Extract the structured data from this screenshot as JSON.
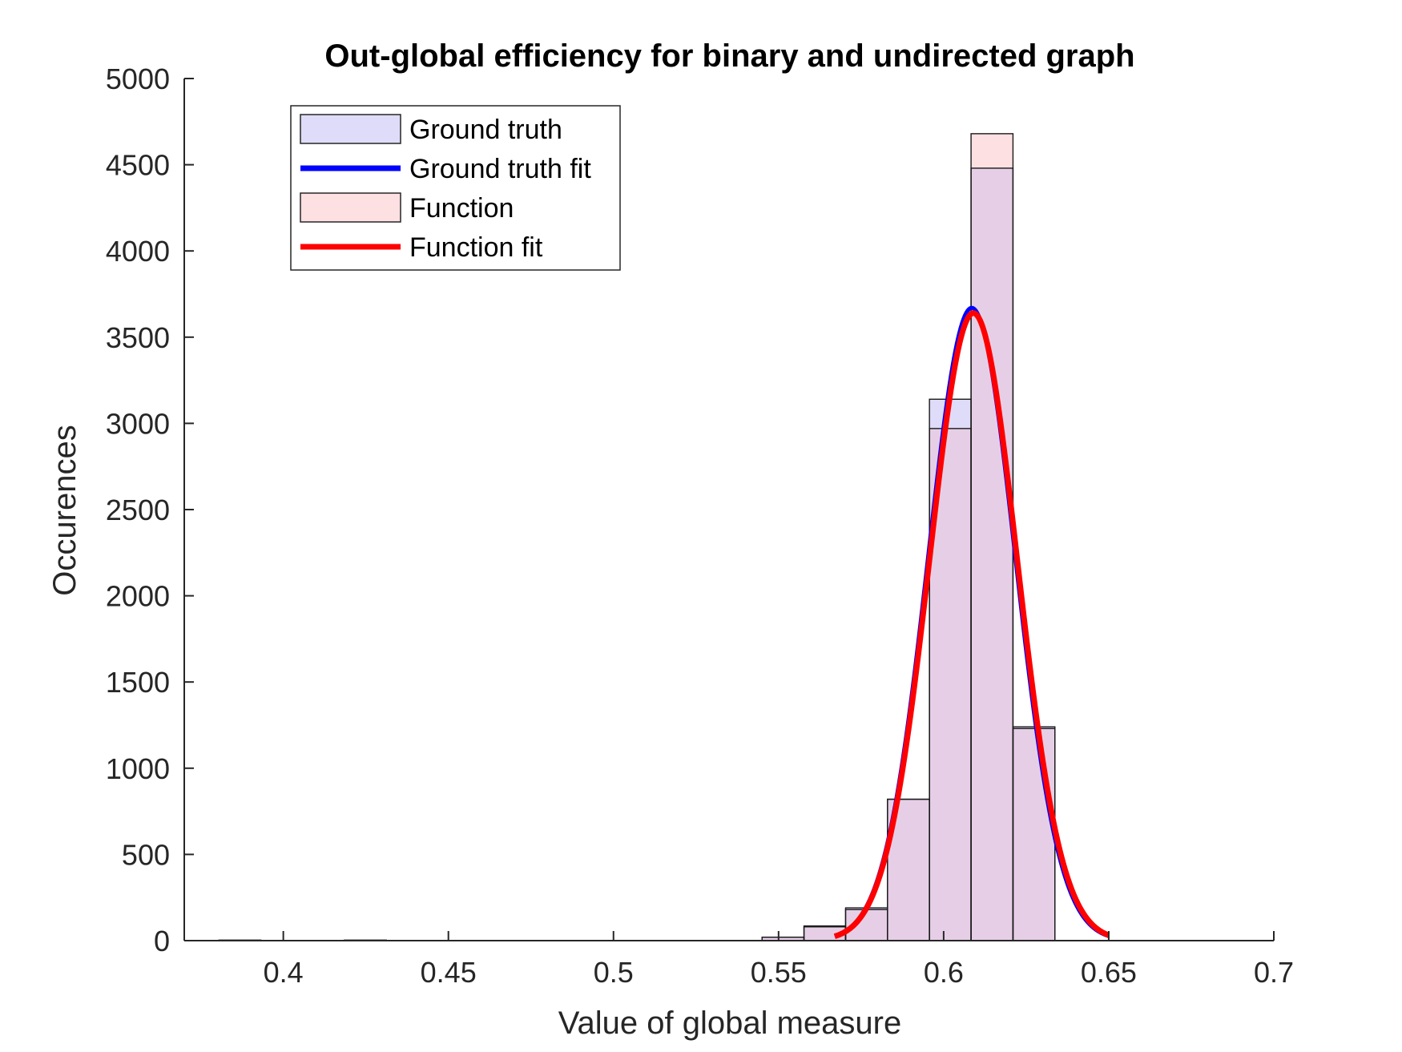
{
  "chart_data": {
    "type": "bar",
    "title": "Out-global efficiency for binary and undirected graph",
    "xlabel": "Value of global measure",
    "ylabel": "Occurences",
    "xlim": [
      0.37,
      0.7
    ],
    "ylim": [
      0,
      5000
    ],
    "xticks": [
      "0.4",
      "0.45",
      "0.5",
      "0.55",
      "0.6",
      "0.65",
      "0.7"
    ],
    "yticks": [
      "0",
      "500",
      "1000",
      "1500",
      "2000",
      "2500",
      "3000",
      "3500",
      "4000",
      "4500",
      "5000"
    ],
    "grid": false,
    "legend_position": "top-left",
    "legend": [
      "Ground truth",
      "Ground truth fit",
      "Function",
      "Function fit"
    ],
    "series": [
      {
        "name": "Ground truth",
        "kind": "histogram",
        "color": "#dedcf8",
        "bins": [
          {
            "x0": 0.3805,
            "x1": 0.3932,
            "count": 3
          },
          {
            "x0": 0.4185,
            "x1": 0.4312,
            "count": 3
          },
          {
            "x0": 0.545,
            "x1": 0.5577,
            "count": 20
          },
          {
            "x0": 0.5577,
            "x1": 0.5703,
            "count": 80
          },
          {
            "x0": 0.5703,
            "x1": 0.583,
            "count": 190
          },
          {
            "x0": 0.583,
            "x1": 0.5957,
            "count": 820
          },
          {
            "x0": 0.5957,
            "x1": 0.6083,
            "count": 3140
          },
          {
            "x0": 0.6083,
            "x1": 0.621,
            "count": 4480
          },
          {
            "x0": 0.621,
            "x1": 0.6337,
            "count": 1240
          }
        ]
      },
      {
        "name": "Ground truth fit",
        "kind": "line",
        "color": "#0000ff",
        "mu": 0.6085,
        "sigma": 0.0132,
        "peak": 3670,
        "x_range": [
          0.567,
          0.65
        ]
      },
      {
        "name": "Function",
        "kind": "histogram",
        "color": "#fde0e2",
        "bins": [
          {
            "x0": 0.3805,
            "x1": 0.3932,
            "count": 2
          },
          {
            "x0": 0.4185,
            "x1": 0.4312,
            "count": 2
          },
          {
            "x0": 0.545,
            "x1": 0.5577,
            "count": 20
          },
          {
            "x0": 0.5577,
            "x1": 0.5703,
            "count": 85
          },
          {
            "x0": 0.5703,
            "x1": 0.583,
            "count": 180
          },
          {
            "x0": 0.583,
            "x1": 0.5957,
            "count": 820
          },
          {
            "x0": 0.5957,
            "x1": 0.6083,
            "count": 2970
          },
          {
            "x0": 0.6083,
            "x1": 0.621,
            "count": 4680
          },
          {
            "x0": 0.621,
            "x1": 0.6337,
            "count": 1230
          }
        ]
      },
      {
        "name": "Function fit",
        "kind": "line",
        "color": "#ff0000",
        "mu": 0.609,
        "sigma": 0.0133,
        "peak": 3640,
        "x_range": [
          0.567,
          0.65
        ]
      }
    ],
    "overlap_color": "#e6cfe6"
  }
}
